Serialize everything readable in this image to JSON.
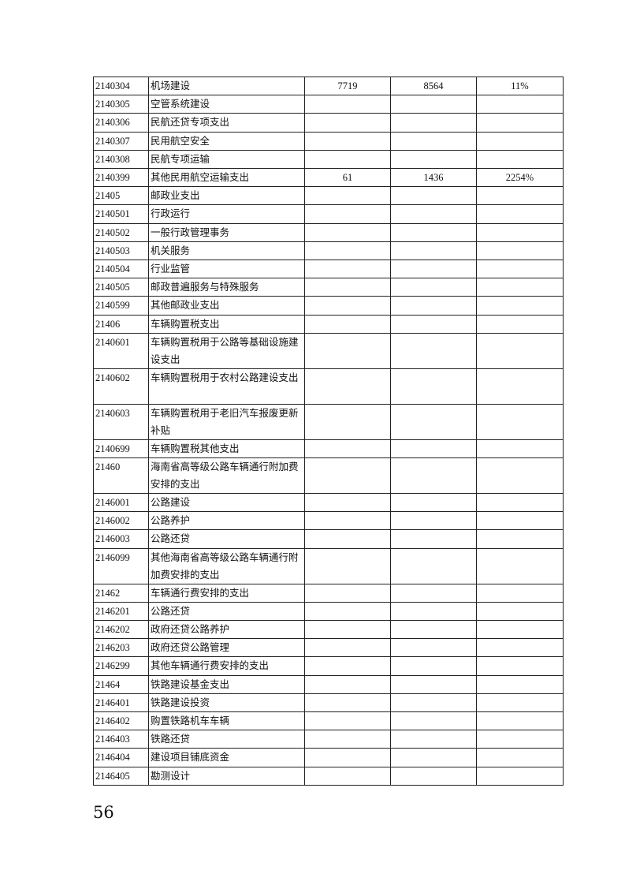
{
  "table": {
    "rows": [
      {
        "code": "2140304",
        "name": "机场建设",
        "v1": "7719",
        "v2": "8564",
        "pct": "11%"
      },
      {
        "code": "2140305",
        "name": "空管系统建设",
        "v1": "",
        "v2": "",
        "pct": ""
      },
      {
        "code": "2140306",
        "name": "民航还贷专项支出",
        "v1": "",
        "v2": "",
        "pct": ""
      },
      {
        "code": "2140307",
        "name": "民用航空安全",
        "v1": "",
        "v2": "",
        "pct": ""
      },
      {
        "code": "2140308",
        "name": "民航专项运输",
        "v1": "",
        "v2": "",
        "pct": ""
      },
      {
        "code": "2140399",
        "name": "其他民用航空运输支出",
        "v1": "61",
        "v2": "1436",
        "pct": "2254%"
      },
      {
        "code": "21405",
        "name": "邮政业支出",
        "v1": "",
        "v2": "",
        "pct": ""
      },
      {
        "code": "2140501",
        "name": "行政运行",
        "v1": "",
        "v2": "",
        "pct": ""
      },
      {
        "code": "2140502",
        "name": "一般行政管理事务",
        "v1": "",
        "v2": "",
        "pct": ""
      },
      {
        "code": "2140503",
        "name": "机关服务",
        "v1": "",
        "v2": "",
        "pct": ""
      },
      {
        "code": "2140504",
        "name": "行业监管",
        "v1": "",
        "v2": "",
        "pct": ""
      },
      {
        "code": "2140505",
        "name": "邮政普遍服务与特殊服务",
        "v1": "",
        "v2": "",
        "pct": ""
      },
      {
        "code": "2140599",
        "name": "其他邮政业支出",
        "v1": "",
        "v2": "",
        "pct": ""
      },
      {
        "code": "21406",
        "name": "车辆购置税支出",
        "v1": "",
        "v2": "",
        "pct": ""
      },
      {
        "code": "2140601",
        "name": "车辆购置税用于公路等基础设施建设支出",
        "v1": "",
        "v2": "",
        "pct": "",
        "double": true
      },
      {
        "code": "2140602",
        "name": "车辆购置税用于农村公路建设支出",
        "v1": "",
        "v2": "",
        "pct": "",
        "double": true
      },
      {
        "code": "2140603",
        "name": "车辆购置税用于老旧汽车报废更新补贴",
        "v1": "",
        "v2": "",
        "pct": "",
        "double": true
      },
      {
        "code": "2140699",
        "name": "车辆购置税其他支出",
        "v1": "",
        "v2": "",
        "pct": ""
      },
      {
        "code": "21460",
        "name": "海南省高等级公路车辆通行附加费安排的支出",
        "v1": "",
        "v2": "",
        "pct": "",
        "double": true
      },
      {
        "code": "2146001",
        "name": "公路建设",
        "v1": "",
        "v2": "",
        "pct": ""
      },
      {
        "code": "2146002",
        "name": "公路养护",
        "v1": "",
        "v2": "",
        "pct": ""
      },
      {
        "code": "2146003",
        "name": "公路还贷",
        "v1": "",
        "v2": "",
        "pct": ""
      },
      {
        "code": "2146099",
        "name": "其他海南省高等级公路车辆通行附加费安排的支出",
        "v1": "",
        "v2": "",
        "pct": "",
        "double": true
      },
      {
        "code": "21462",
        "name": "车辆通行费安排的支出",
        "v1": "",
        "v2": "",
        "pct": ""
      },
      {
        "code": "2146201",
        "name": "公路还贷",
        "v1": "",
        "v2": "",
        "pct": ""
      },
      {
        "code": "2146202",
        "name": "政府还贷公路养护",
        "v1": "",
        "v2": "",
        "pct": ""
      },
      {
        "code": "2146203",
        "name": "政府还贷公路管理",
        "v1": "",
        "v2": "",
        "pct": ""
      },
      {
        "code": "2146299",
        "name": "其他车辆通行费安排的支出",
        "v1": "",
        "v2": "",
        "pct": ""
      },
      {
        "code": "21464",
        "name": "铁路建设基金支出",
        "v1": "",
        "v2": "",
        "pct": ""
      },
      {
        "code": "2146401",
        "name": "铁路建设投资",
        "v1": "",
        "v2": "",
        "pct": ""
      },
      {
        "code": "2146402",
        "name": "购置铁路机车车辆",
        "v1": "",
        "v2": "",
        "pct": ""
      },
      {
        "code": "2146403",
        "name": "铁路还贷",
        "v1": "",
        "v2": "",
        "pct": ""
      },
      {
        "code": "2146404",
        "name": "建设项目铺底资金",
        "v1": "",
        "v2": "",
        "pct": ""
      },
      {
        "code": "2146405",
        "name": "勘测设计",
        "v1": "",
        "v2": "",
        "pct": ""
      }
    ]
  },
  "page_number": "56"
}
